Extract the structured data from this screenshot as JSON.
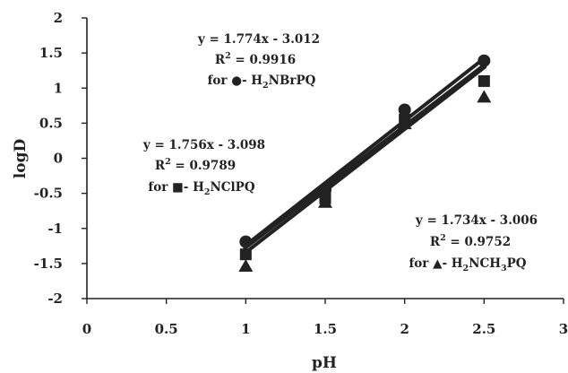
{
  "chart_data": {
    "type": "scatter",
    "title": "",
    "xlabel": "pH",
    "ylabel": "logD",
    "xlim": [
      0,
      3
    ],
    "ylim": [
      -2,
      2
    ],
    "x_ticks": [
      "0",
      "0.5",
      "1",
      "1.5",
      "2",
      "2.5",
      "3"
    ],
    "y_ticks": [
      "-2",
      "-1.5",
      "-1",
      "-0.5",
      "0",
      "0.5",
      "1",
      "1.5",
      "2"
    ],
    "grid": false,
    "legend": "none",
    "series": [
      {
        "name": "H2NBrPQ",
        "marker": "circle",
        "points": [
          [
            1,
            -1.19
          ],
          [
            1.5,
            -0.45
          ],
          [
            2,
            0.69
          ],
          [
            2.5,
            1.39
          ]
        ],
        "fit": {
          "slope": 1.774,
          "intercept": -3.012
        }
      },
      {
        "name": "H2NClPQ",
        "marker": "square",
        "points": [
          [
            1,
            -1.37
          ],
          [
            1.5,
            -0.57
          ],
          [
            2,
            0.55
          ],
          [
            2.5,
            1.1
          ]
        ],
        "fit": {
          "slope": 1.756,
          "intercept": -3.098
        }
      },
      {
        "name": "H2NCH3PQ",
        "marker": "triangle",
        "points": [
          [
            1,
            -1.54
          ],
          [
            1.5,
            -0.63
          ],
          [
            2,
            0.49
          ],
          [
            2.5,
            0.87
          ]
        ],
        "fit": {
          "slope": 1.734,
          "intercept": -3.006
        }
      }
    ],
    "annotations": [
      {
        "equation": "y = 1.774x - 3.012",
        "r2_label": "R",
        "r2_exp": "2",
        "r2_value": " = 0.9916",
        "for_prefix": "for ",
        "symbol": "●",
        "dash": "- H",
        "sub1": "2",
        "rest": "NBrPQ",
        "sub2": "",
        "tail": ""
      },
      {
        "equation": "y = 1.756x - 3.098",
        "r2_label": "R",
        "r2_exp": "2",
        "r2_value": " = 0.9789",
        "for_prefix": "for ",
        "symbol": "■",
        "dash": "- H",
        "sub1": "2",
        "rest": "NClPQ",
        "sub2": "",
        "tail": ""
      },
      {
        "equation": "y = 1.734x - 3.006",
        "r2_label": "R",
        "r2_exp": "2",
        "r2_value": " = 0.9752",
        "for_prefix": "for ",
        "symbol": "▲",
        "dash": "- H",
        "sub1": "2",
        "rest": "NCH",
        "sub2": "3",
        "tail": "PQ"
      }
    ]
  }
}
